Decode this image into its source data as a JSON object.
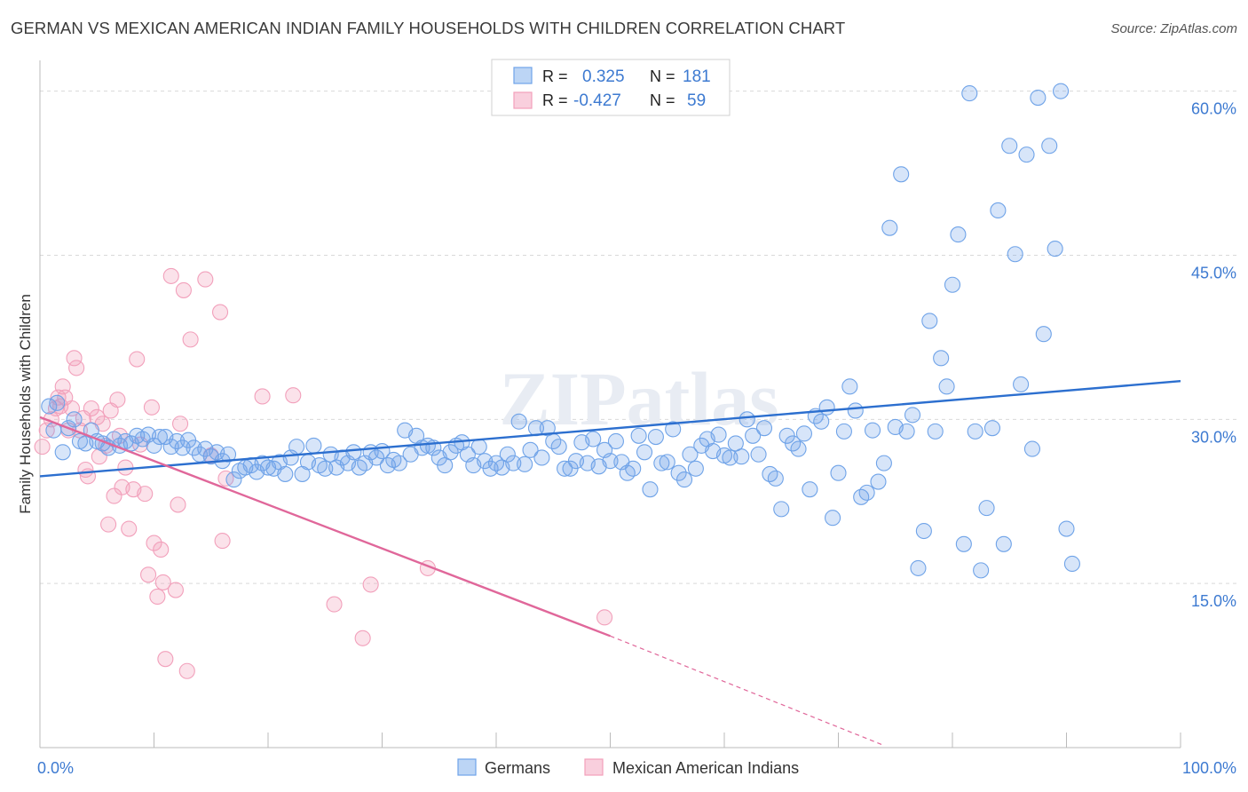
{
  "title": "GERMAN VS MEXICAN AMERICAN INDIAN FAMILY HOUSEHOLDS WITH CHILDREN CORRELATION CHART",
  "source": "Source: ZipAtlas.com",
  "watermark": "ZIPatlas",
  "colors": {
    "blue": "#6fa3e8",
    "blue_line": "#2c6fcf",
    "pink": "#f2a0bb",
    "pink_line": "#e0679a",
    "axis_text": "#3d7ad1",
    "grid": "#d9d9d9"
  },
  "stats": [
    {
      "r_label": "R =",
      "r": "0.325",
      "n_label": "N =",
      "n": "181",
      "color": "blue"
    },
    {
      "r_label": "R =",
      "r": "-0.427",
      "n_label": "N =",
      "n": "59",
      "color": "pink"
    }
  ],
  "chart_data": {
    "type": "scatter",
    "title": "GERMAN VS MEXICAN AMERICAN INDIAN FAMILY HOUSEHOLDS WITH CHILDREN CORRELATION CHART",
    "xlabel": "",
    "ylabel": "Family Households with Children",
    "xlim": [
      0,
      100
    ],
    "ylim": [
      0,
      62
    ],
    "x_tick_labels": [
      "0.0%",
      "100.0%"
    ],
    "y_ticks": [
      15,
      30,
      45,
      60
    ],
    "y_tick_labels": [
      "15.0%",
      "30.0%",
      "45.0%",
      "60.0%"
    ],
    "grid": true,
    "legend_position": "bottom-center",
    "series": [
      {
        "name": "Germans",
        "color": "blue",
        "trend": {
          "x0": 0,
          "y0": 24.8,
          "x1": 100,
          "y1": 33.5
        },
        "points": [
          [
            0.8,
            31.2
          ],
          [
            1.2,
            29.0
          ],
          [
            1.5,
            31.5
          ],
          [
            2.0,
            27.0
          ],
          [
            2.5,
            29.2
          ],
          [
            3.0,
            30.0
          ],
          [
            3.5,
            28.0
          ],
          [
            4.0,
            27.8
          ],
          [
            4.5,
            29.0
          ],
          [
            5.0,
            28.0
          ],
          [
            5.5,
            27.8
          ],
          [
            6.0,
            27.4
          ],
          [
            6.5,
            28.2
          ],
          [
            7.0,
            27.6
          ],
          [
            7.5,
            28.0
          ],
          [
            8.0,
            27.8
          ],
          [
            8.5,
            28.5
          ],
          [
            9.0,
            28.2
          ],
          [
            9.5,
            28.6
          ],
          [
            10.0,
            27.6
          ],
          [
            10.5,
            28.4
          ],
          [
            11.0,
            28.4
          ],
          [
            11.5,
            27.5
          ],
          [
            12.0,
            28.0
          ],
          [
            12.5,
            27.4
          ],
          [
            13.0,
            28.1
          ],
          [
            13.5,
            27.4
          ],
          [
            14.0,
            26.8
          ],
          [
            14.5,
            27.3
          ],
          [
            15.0,
            26.6
          ],
          [
            15.5,
            27.0
          ],
          [
            16.0,
            26.2
          ],
          [
            16.5,
            26.8
          ],
          [
            17.0,
            24.5
          ],
          [
            17.5,
            25.3
          ],
          [
            18.0,
            25.6
          ],
          [
            18.5,
            25.8
          ],
          [
            19.0,
            25.2
          ],
          [
            19.5,
            26.0
          ],
          [
            20.0,
            25.6
          ],
          [
            20.5,
            25.5
          ],
          [
            21.0,
            26.1
          ],
          [
            21.5,
            25.0
          ],
          [
            22.0,
            26.5
          ],
          [
            22.5,
            27.5
          ],
          [
            23.0,
            25.0
          ],
          [
            23.5,
            26.1
          ],
          [
            24.0,
            27.6
          ],
          [
            24.5,
            25.8
          ],
          [
            25.0,
            25.5
          ],
          [
            25.5,
            26.8
          ],
          [
            26.0,
            25.6
          ],
          [
            26.5,
            26.5
          ],
          [
            27.0,
            26.0
          ],
          [
            27.5,
            27.0
          ],
          [
            28.0,
            25.6
          ],
          [
            28.5,
            26.0
          ],
          [
            29.0,
            27.0
          ],
          [
            29.5,
            26.5
          ],
          [
            30.0,
            27.1
          ],
          [
            30.5,
            25.8
          ],
          [
            31.0,
            26.3
          ],
          [
            31.5,
            26.0
          ],
          [
            32.0,
            29.0
          ],
          [
            32.5,
            26.8
          ],
          [
            33.0,
            28.5
          ],
          [
            33.5,
            27.4
          ],
          [
            34.0,
            27.6
          ],
          [
            34.5,
            27.4
          ],
          [
            35.0,
            26.5
          ],
          [
            35.5,
            25.8
          ],
          [
            36.0,
            27.0
          ],
          [
            36.5,
            27.6
          ],
          [
            37.0,
            27.9
          ],
          [
            37.5,
            26.8
          ],
          [
            38.0,
            25.8
          ],
          [
            38.5,
            27.5
          ],
          [
            39.0,
            26.2
          ],
          [
            39.5,
            25.5
          ],
          [
            40.0,
            26.0
          ],
          [
            40.5,
            25.6
          ],
          [
            41.0,
            26.8
          ],
          [
            41.5,
            26.0
          ],
          [
            42.0,
            29.8
          ],
          [
            42.5,
            25.9
          ],
          [
            43.0,
            27.2
          ],
          [
            43.5,
            29.2
          ],
          [
            44.0,
            26.5
          ],
          [
            44.5,
            29.2
          ],
          [
            45.0,
            28.0
          ],
          [
            45.5,
            27.5
          ],
          [
            46.0,
            25.5
          ],
          [
            46.5,
            25.5
          ],
          [
            47.0,
            26.2
          ],
          [
            47.5,
            27.9
          ],
          [
            48.0,
            26.0
          ],
          [
            48.5,
            28.2
          ],
          [
            49.0,
            25.7
          ],
          [
            49.5,
            27.2
          ],
          [
            50.0,
            26.2
          ],
          [
            50.5,
            28.0
          ],
          [
            51.0,
            26.1
          ],
          [
            51.5,
            25.1
          ],
          [
            52.0,
            25.5
          ],
          [
            52.5,
            28.5
          ],
          [
            53.0,
            27.0
          ],
          [
            53.5,
            23.6
          ],
          [
            54.0,
            28.4
          ],
          [
            54.5,
            26.0
          ],
          [
            55.0,
            26.1
          ],
          [
            55.5,
            29.1
          ],
          [
            56.0,
            25.1
          ],
          [
            56.5,
            24.5
          ],
          [
            57.0,
            26.8
          ],
          [
            57.5,
            25.5
          ],
          [
            58.0,
            27.6
          ],
          [
            58.5,
            28.2
          ],
          [
            59.0,
            27.1
          ],
          [
            59.5,
            28.6
          ],
          [
            60.0,
            26.7
          ],
          [
            60.5,
            26.5
          ],
          [
            61.0,
            27.8
          ],
          [
            61.5,
            26.6
          ],
          [
            62.0,
            30.0
          ],
          [
            62.5,
            28.5
          ],
          [
            63.0,
            26.8
          ],
          [
            63.5,
            29.2
          ],
          [
            64.0,
            25.0
          ],
          [
            64.5,
            24.6
          ],
          [
            65.0,
            21.8
          ],
          [
            65.5,
            28.5
          ],
          [
            66.0,
            27.8
          ],
          [
            66.5,
            27.3
          ],
          [
            67.0,
            28.7
          ],
          [
            67.5,
            23.6
          ],
          [
            68.0,
            30.3
          ],
          [
            68.5,
            29.8
          ],
          [
            69.0,
            31.1
          ],
          [
            69.5,
            21.0
          ],
          [
            70.0,
            25.1
          ],
          [
            70.5,
            28.9
          ],
          [
            71.0,
            33.0
          ],
          [
            71.5,
            30.8
          ],
          [
            72.0,
            22.9
          ],
          [
            72.5,
            23.3
          ],
          [
            73.0,
            29.0
          ],
          [
            73.5,
            24.3
          ],
          [
            74.0,
            26.0
          ],
          [
            74.5,
            47.5
          ],
          [
            75.0,
            29.3
          ],
          [
            75.5,
            52.4
          ],
          [
            76.0,
            28.9
          ],
          [
            76.5,
            30.4
          ],
          [
            77.0,
            16.4
          ],
          [
            77.5,
            19.8
          ],
          [
            78.0,
            39.0
          ],
          [
            78.5,
            28.9
          ],
          [
            79.0,
            35.6
          ],
          [
            79.5,
            33.0
          ],
          [
            80.0,
            42.3
          ],
          [
            80.5,
            46.9
          ],
          [
            81.0,
            18.6
          ],
          [
            81.5,
            59.8
          ],
          [
            82.0,
            28.9
          ],
          [
            82.5,
            16.2
          ],
          [
            83.0,
            21.9
          ],
          [
            83.5,
            29.2
          ],
          [
            84.0,
            49.1
          ],
          [
            84.5,
            18.6
          ],
          [
            85.0,
            55.0
          ],
          [
            85.5,
            45.1
          ],
          [
            86.0,
            33.2
          ],
          [
            86.5,
            54.2
          ],
          [
            87.0,
            27.3
          ],
          [
            87.5,
            59.4
          ],
          [
            88.0,
            37.8
          ],
          [
            88.5,
            55.0
          ],
          [
            89.0,
            45.6
          ],
          [
            89.5,
            60.0
          ],
          [
            90.0,
            20.0
          ],
          [
            90.5,
            16.8
          ]
        ]
      },
      {
        "name": "Mexican American Indians",
        "color": "pink",
        "trend": {
          "x0": 0,
          "y0": 30.2,
          "x1": 50,
          "y1": 10.2,
          "dash_x1": 74,
          "dash_y1": 0.2
        },
        "points": [
          [
            0.2,
            27.5
          ],
          [
            0.6,
            29.0
          ],
          [
            1.0,
            30.0
          ],
          [
            1.4,
            31.0
          ],
          [
            1.6,
            32.0
          ],
          [
            1.8,
            31.2
          ],
          [
            2.0,
            33.0
          ],
          [
            2.2,
            32.0
          ],
          [
            2.5,
            29.0
          ],
          [
            2.8,
            31.0
          ],
          [
            3.0,
            35.6
          ],
          [
            3.2,
            34.7
          ],
          [
            3.5,
            29.0
          ],
          [
            3.8,
            30.1
          ],
          [
            4.0,
            25.4
          ],
          [
            4.2,
            24.8
          ],
          [
            4.5,
            31.0
          ],
          [
            5.0,
            30.2
          ],
          [
            5.2,
            26.6
          ],
          [
            5.5,
            29.6
          ],
          [
            5.8,
            27.6
          ],
          [
            6.0,
            20.4
          ],
          [
            6.2,
            30.8
          ],
          [
            6.5,
            23.0
          ],
          [
            6.8,
            31.8
          ],
          [
            7.0,
            28.5
          ],
          [
            7.2,
            23.8
          ],
          [
            7.5,
            25.6
          ],
          [
            7.8,
            20.0
          ],
          [
            8.2,
            23.6
          ],
          [
            8.5,
            35.5
          ],
          [
            8.8,
            27.7
          ],
          [
            9.2,
            23.2
          ],
          [
            9.5,
            15.8
          ],
          [
            9.8,
            31.1
          ],
          [
            10.0,
            18.7
          ],
          [
            10.3,
            13.8
          ],
          [
            10.6,
            18.1
          ],
          [
            10.8,
            15.1
          ],
          [
            11.0,
            8.1
          ],
          [
            11.5,
            43.1
          ],
          [
            11.9,
            14.4
          ],
          [
            12.1,
            22.2
          ],
          [
            12.3,
            29.6
          ],
          [
            12.6,
            41.8
          ],
          [
            12.9,
            7.0
          ],
          [
            13.2,
            37.3
          ],
          [
            14.5,
            42.8
          ],
          [
            15.0,
            26.7
          ],
          [
            15.8,
            39.8
          ],
          [
            16.0,
            18.9
          ],
          [
            16.3,
            24.6
          ],
          [
            19.5,
            32.1
          ],
          [
            22.2,
            32.2
          ],
          [
            25.8,
            13.1
          ],
          [
            28.3,
            10.0
          ],
          [
            29.0,
            14.9
          ],
          [
            34.0,
            16.4
          ],
          [
            49.5,
            11.9
          ]
        ]
      }
    ]
  }
}
